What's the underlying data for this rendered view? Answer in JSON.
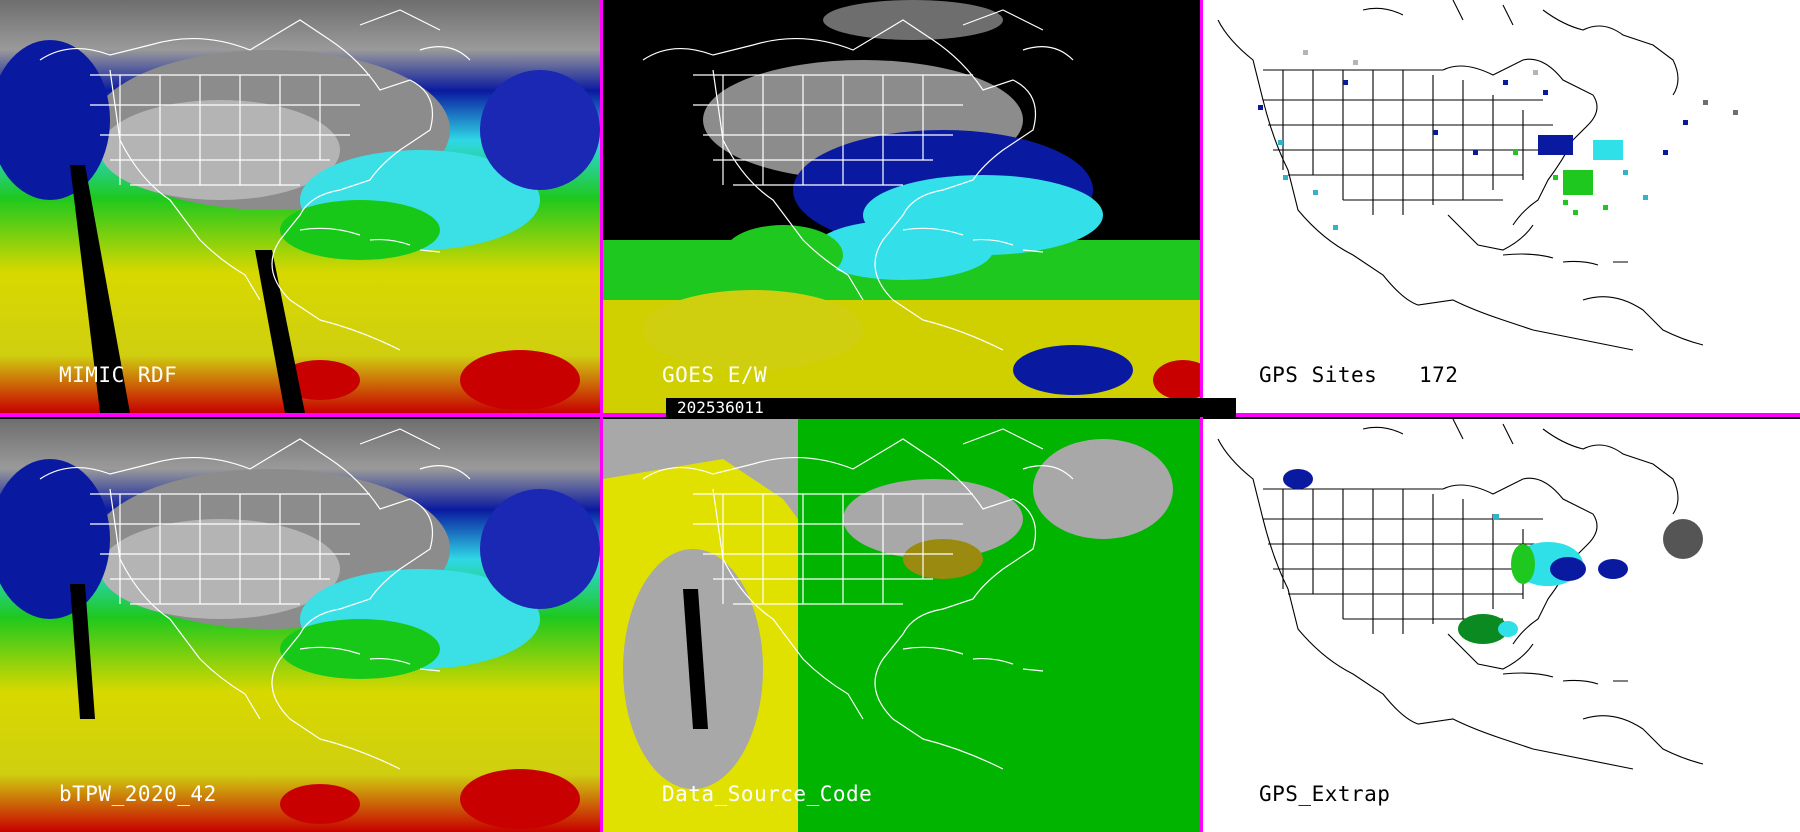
{
  "panels": {
    "mimic": {
      "label": "MIMIC RDF"
    },
    "goes": {
      "label": "GOES E/W"
    },
    "gps_sites": {
      "label": "GPS Sites",
      "count": "172"
    },
    "btpw": {
      "label": "bTPW_2020_42"
    },
    "data_source": {
      "label": "Data_Source_Code"
    },
    "gps_extrap": {
      "label": "GPS_Extrap"
    }
  },
  "timestamp": "202536011",
  "colors": {
    "divider": "#ff00ff",
    "tpw_low": "#5a5a5a",
    "tpw_blue": "#0a18a0",
    "tpw_cyan": "#2fe0e8",
    "tpw_green": "#16c816",
    "tpw_yellow": "#dcdc00",
    "tpw_red": "#c80000",
    "source_gray": "#a8a8a8",
    "source_green": "#00b400",
    "source_yellow": "#e1e100"
  }
}
